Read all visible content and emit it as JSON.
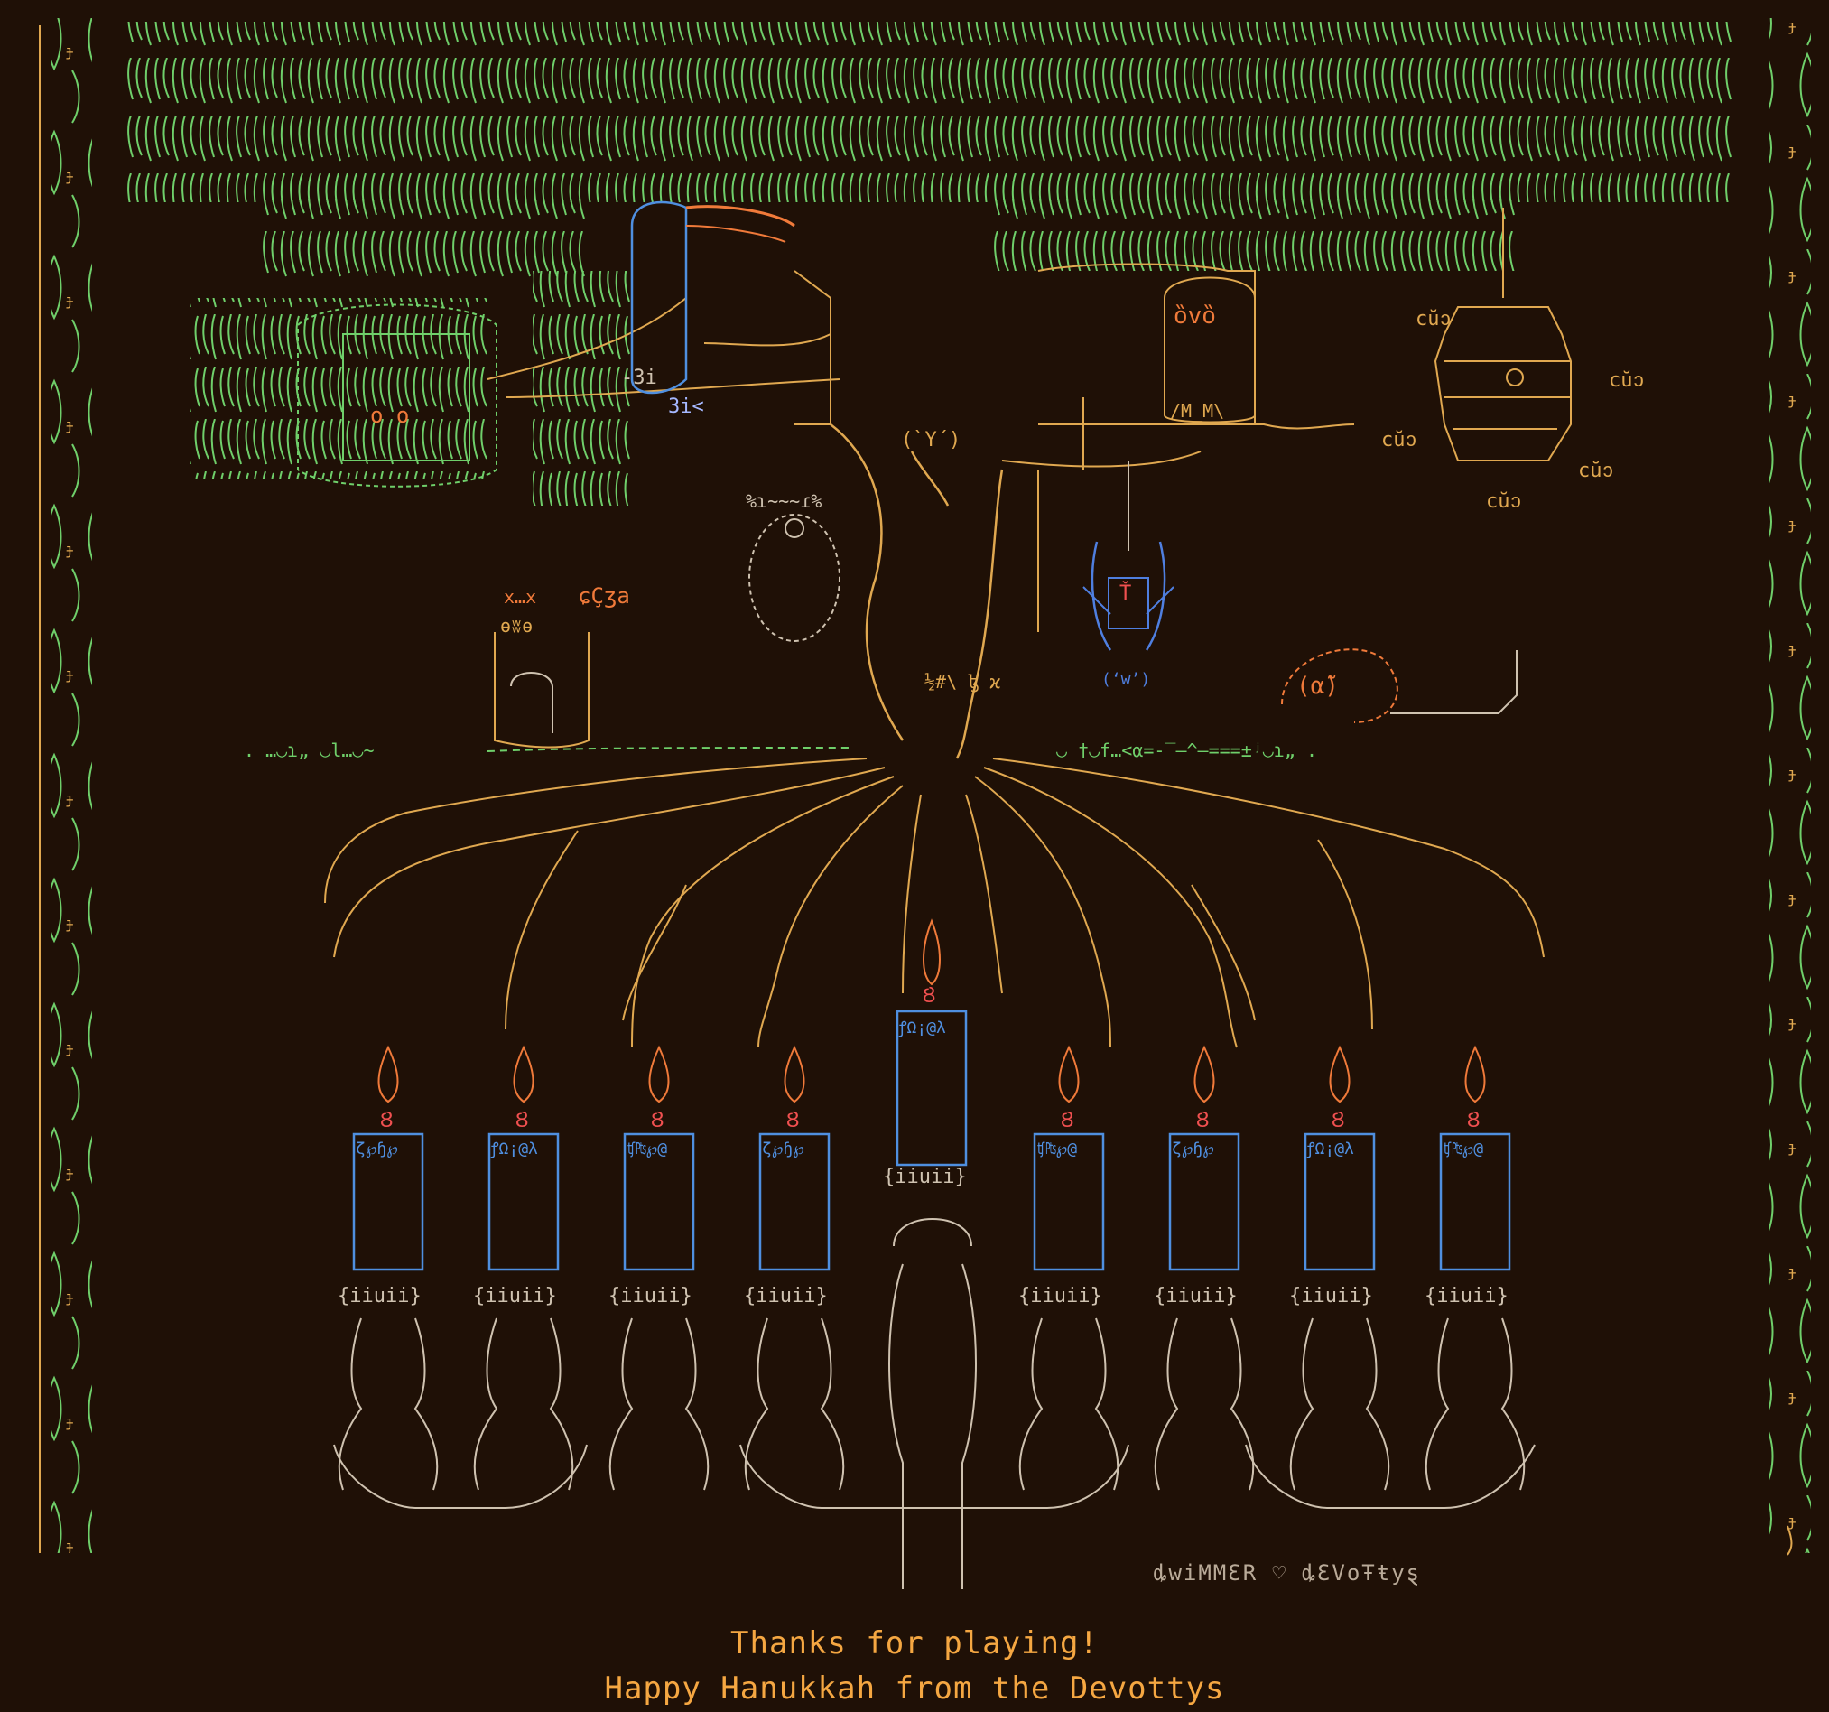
{
  "messages": {
    "thanks": "Thanks for playing!",
    "happy": "Happy Hanukkah from the Devottys"
  },
  "signature": "ȡwiMMƐR ♡ ȡƐVoŦŧyȿ",
  "colors": {
    "background": "#1f1006",
    "canopy": "#6fcf6a",
    "trunk": "#e0a850",
    "message": "#f5a742",
    "candle": "#4f8fe0",
    "flame": "#f07a3a",
    "spider": "#4f7fe0",
    "menorah_base": "#cfc2b0"
  },
  "scene": {
    "toucan_label_1": "-3i",
    "toucan_label_2": "3i<",
    "hive_tags": [
      "cŭↄ",
      "cŭↄ",
      "cŭↄ",
      "cŭↄ",
      "cŭↄ"
    ],
    "koala_text": "%ɿ~~~ɾ%",
    "cat_text": "x…x",
    "cat_face": "ɵʬɵ",
    "cat_tag": "ɕÇʒa",
    "snail_face": "(α̃)",
    "owl_face": "ȍvȍ",
    "owl_feet": "/M_M\\",
    "bat_face": "(`Y´)",
    "spider_face": "(‘w’)",
    "leaf_face": "o o",
    "ground_left": ". …◡ɿ„ ◡l…◡~",
    "ground_right": "◡ †◡f…<α=-‾—^—===±ʲ◡ɿ„ .",
    "center_glyphs": "½#\\ ɮ ϰ",
    "candle_tops": [
      "ζ℘ɧ℘",
      "ꝭΩ¡@λ",
      "ʧ₧℘@",
      "ζ℘ɧ℘",
      "ꝭΩ¡@λ",
      "ʧ₧℘@",
      "ζ℘ɧ℘",
      "ꝭΩ¡@λ",
      "ʧ₧℘@"
    ],
    "candle_labels": [
      "{iiuii}",
      "{iiuii}",
      "{iiuii}",
      "{iiuii}",
      "{iiuii}",
      "{iiuii}",
      "{iiuii}",
      "{iiuii}",
      "{iiuii}"
    ],
    "flame_glyph": "Ȣ"
  }
}
